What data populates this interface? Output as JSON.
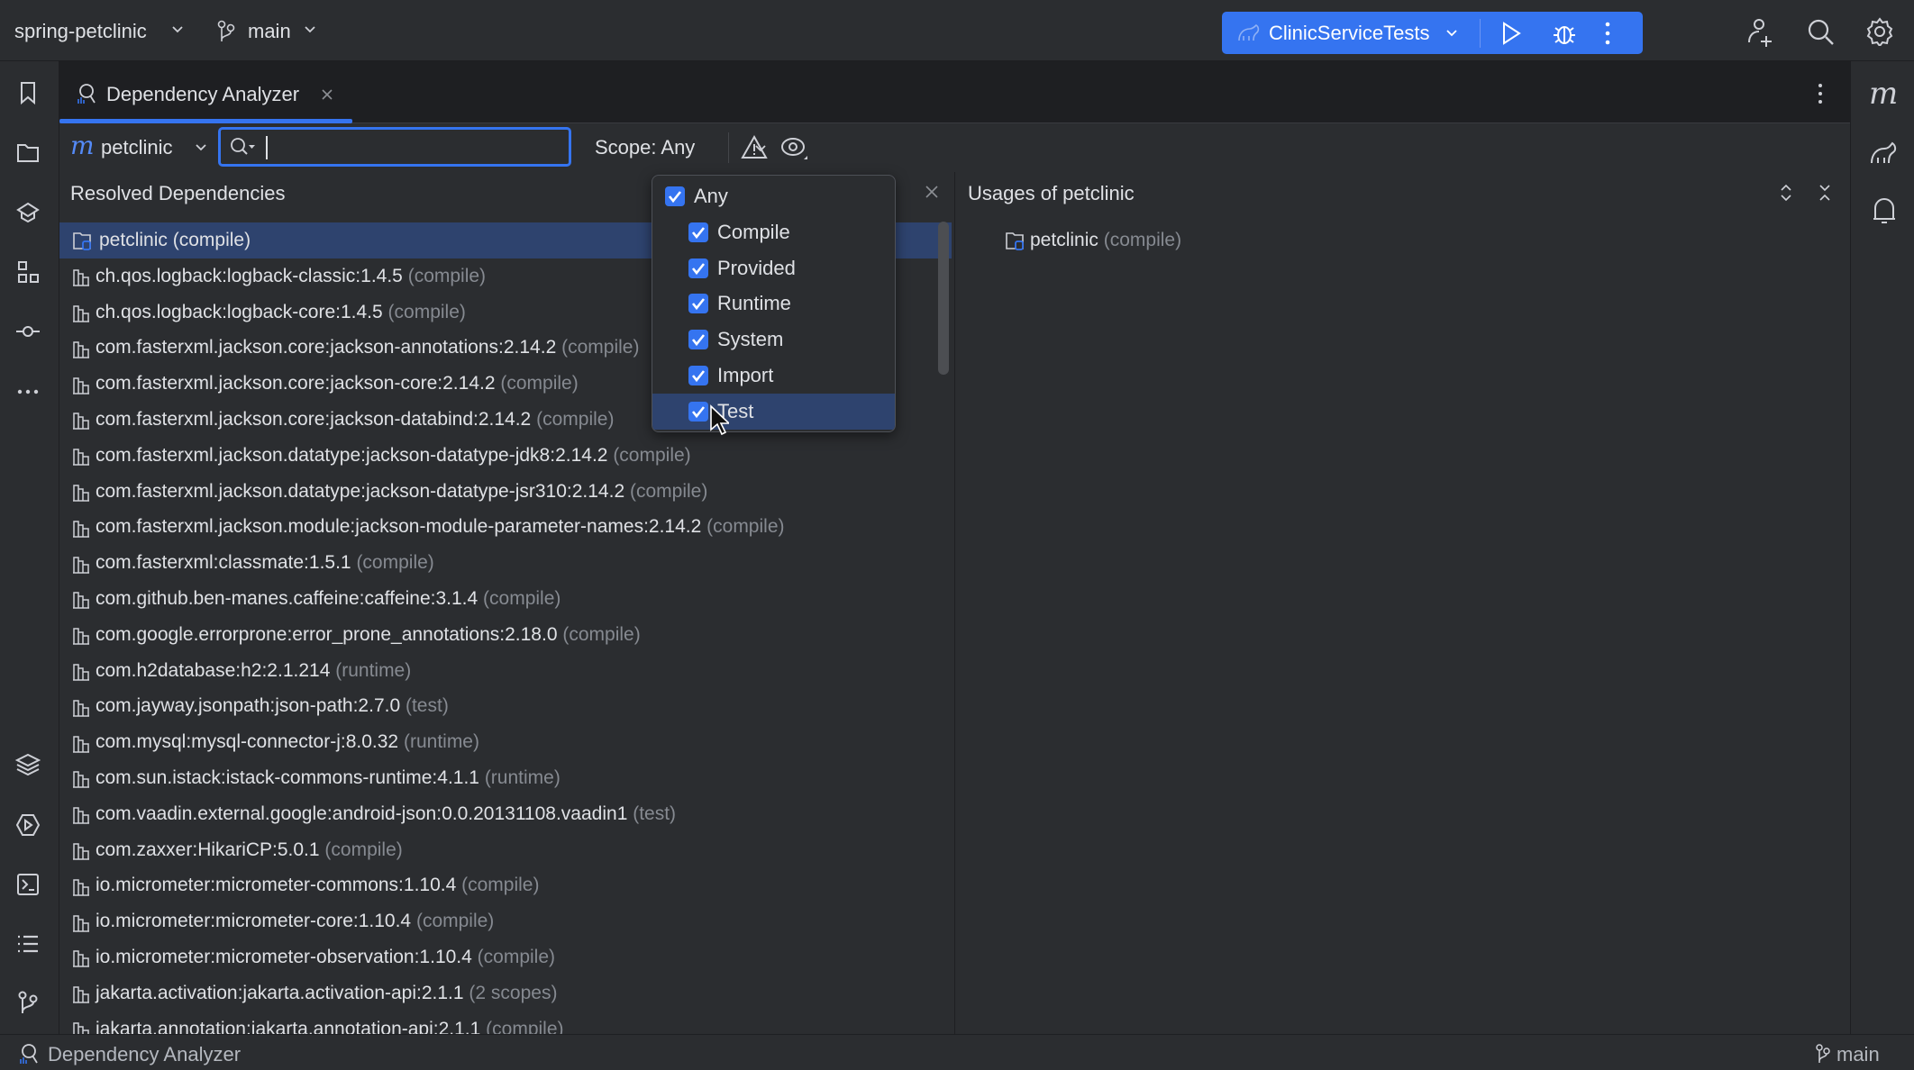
{
  "topbar": {
    "project": "spring-petclinic",
    "branch": "main",
    "run_config": "ClinicServiceTests",
    "accent": "#3574f0"
  },
  "tab": {
    "title": "Dependency Analyzer"
  },
  "toolbar": {
    "module": "petclinic",
    "search_value": "",
    "scope_label": "Scope: Any"
  },
  "left_panel": {
    "title": "Resolved Dependencies",
    "rows": [
      {
        "name": "petclinic",
        "scope": "(compile)",
        "type": "module",
        "selected": true
      },
      {
        "name": "ch.qos.logback:logback-classic:1.4.5",
        "scope": "(compile)"
      },
      {
        "name": "ch.qos.logback:logback-core:1.4.5",
        "scope": "(compile)"
      },
      {
        "name": "com.fasterxml.jackson.core:jackson-annotations:2.14.2",
        "scope": "(compile)"
      },
      {
        "name": "com.fasterxml.jackson.core:jackson-core:2.14.2",
        "scope": "(compile)"
      },
      {
        "name": "com.fasterxml.jackson.core:jackson-databind:2.14.2",
        "scope": "(compile)"
      },
      {
        "name": "com.fasterxml.jackson.datatype:jackson-datatype-jdk8:2.14.2",
        "scope": "(compile)"
      },
      {
        "name": "com.fasterxml.jackson.datatype:jackson-datatype-jsr310:2.14.2",
        "scope": "(compile)"
      },
      {
        "name": "com.fasterxml.jackson.module:jackson-module-parameter-names:2.14.2",
        "scope": "(compile)"
      },
      {
        "name": "com.fasterxml:classmate:1.5.1",
        "scope": "(compile)"
      },
      {
        "name": "com.github.ben-manes.caffeine:caffeine:3.1.4",
        "scope": "(compile)"
      },
      {
        "name": "com.google.errorprone:error_prone_annotations:2.18.0",
        "scope": "(compile)"
      },
      {
        "name": "com.h2database:h2:2.1.214",
        "scope": "(runtime)"
      },
      {
        "name": "com.jayway.jsonpath:json-path:2.7.0",
        "scope": "(test)"
      },
      {
        "name": "com.mysql:mysql-connector-j:8.0.32",
        "scope": "(runtime)"
      },
      {
        "name": "com.sun.istack:istack-commons-runtime:4.1.1",
        "scope": "(runtime)"
      },
      {
        "name": "com.vaadin.external.google:android-json:0.0.20131108.vaadin1",
        "scope": "(test)"
      },
      {
        "name": "com.zaxxer:HikariCP:5.0.1",
        "scope": "(compile)"
      },
      {
        "name": "io.micrometer:micrometer-commons:1.10.4",
        "scope": "(compile)"
      },
      {
        "name": "io.micrometer:micrometer-core:1.10.4",
        "scope": "(compile)"
      },
      {
        "name": "io.micrometer:micrometer-observation:1.10.4",
        "scope": "(compile)"
      },
      {
        "name": "jakarta.activation:jakarta.activation-api:2.1.1",
        "scope": "(2 scopes)"
      },
      {
        "name": "jakarta.annotation:jakarta.annotation-api:2.1.1",
        "scope": "(compile)"
      }
    ]
  },
  "scope_dropdown": {
    "options": [
      {
        "label": "Any",
        "checked": true
      },
      {
        "label": "Compile",
        "checked": true
      },
      {
        "label": "Provided",
        "checked": true
      },
      {
        "label": "Runtime",
        "checked": true
      },
      {
        "label": "System",
        "checked": true
      },
      {
        "label": "Import",
        "checked": true
      },
      {
        "label": "Test",
        "checked": true,
        "hovered": true
      }
    ]
  },
  "right_panel": {
    "title": "Usages of petclinic",
    "rows": [
      {
        "name": "petclinic",
        "scope": "(compile)"
      }
    ]
  },
  "statusbar": {
    "tool": "Dependency Analyzer",
    "branch": "main"
  }
}
